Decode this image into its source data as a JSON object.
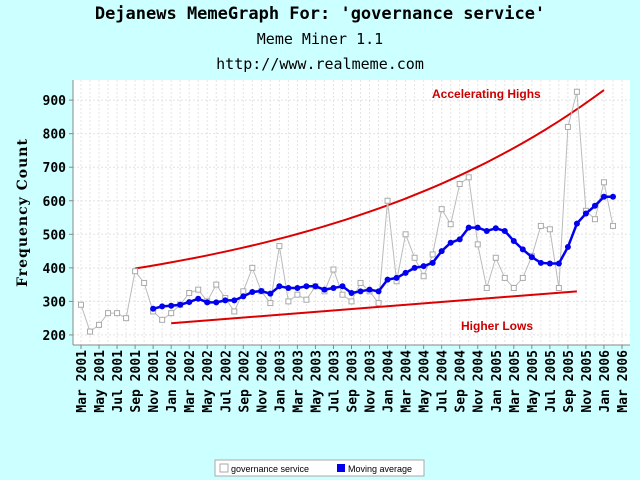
{
  "header": {
    "title": "Dejanews MemeGraph For: 'governance service'",
    "subtitle": "Meme Miner 1.1",
    "url": "http://www.realmeme.com"
  },
  "chart_data": {
    "type": "line",
    "ylabel": "Frequency Count",
    "ylim": [
      170,
      960
    ],
    "yticks": [
      200,
      300,
      400,
      500,
      600,
      700,
      800,
      900
    ],
    "grid": true,
    "background": "#ffffff",
    "page_background": "#ccffff",
    "legend_position": "bottom-center",
    "x_tick_labels": [
      "Mar 2001",
      "May 2001",
      "Jul 2001",
      "Sep 2001",
      "Nov 2001",
      "Jan 2002",
      "Mar 2002",
      "May 2002",
      "Jul 2002",
      "Sep 2002",
      "Nov 2002",
      "Jan 2003",
      "Mar 2003",
      "May 2003",
      "Jul 2003",
      "Sep 2003",
      "Nov 2003",
      "Jan 2004",
      "Mar 2004",
      "May 2004",
      "Jul 2004",
      "Sep 2004",
      "Nov 2004",
      "Jan 2005",
      "Mar 2005",
      "May 2005",
      "Jul 2005",
      "Sep 2005",
      "Nov 2005",
      "Jan 2006",
      "Mar 2006"
    ],
    "series": [
      {
        "name": "governance service",
        "color": "#bbbbbb",
        "marker": "open-square",
        "start": "Mar 2001",
        "values": [
          290,
          210,
          230,
          265,
          265,
          250,
          390,
          355,
          270,
          245,
          265,
          290,
          325,
          335,
          300,
          350,
          310,
          270,
          330,
          400,
          330,
          295,
          465,
          300,
          320,
          305,
          345,
          330,
          395,
          320,
          300,
          355,
          330,
          295,
          600,
          360,
          500,
          430,
          375,
          440,
          575,
          530,
          650,
          670,
          470,
          340,
          430,
          370,
          340,
          370,
          435,
          525,
          515,
          340,
          820,
          925,
          570,
          545,
          655,
          525
        ]
      },
      {
        "name": "Moving average",
        "color": "#0000ee",
        "marker": "filled-circle",
        "start": "Nov 2001",
        "values": [
          278,
          285,
          287,
          290,
          298,
          308,
          297,
          297,
          303,
          303,
          315,
          328,
          331,
          323,
          345,
          340,
          340,
          345,
          345,
          335,
          340,
          345,
          325,
          330,
          335,
          330,
          365,
          370,
          385,
          400,
          405,
          415,
          450,
          475,
          485,
          520,
          520,
          510,
          518,
          510,
          480,
          455,
          432,
          415,
          413,
          413,
          462,
          532,
          562,
          585,
          612,
          612
        ]
      }
    ],
    "trendlines": [
      {
        "name": "Accelerating Highs",
        "color": "#dd0000",
        "from": [
          "Sep 2001",
          398
        ],
        "to": [
          "Jan 2006",
          930
        ],
        "curve": "exponential"
      },
      {
        "name": "Higher Lows",
        "color": "#dd0000",
        "from": [
          "Jan 2002",
          235
        ],
        "to": [
          "Oct 2005",
          330
        ],
        "curve": "linear"
      }
    ],
    "annotations": [
      {
        "text": "Accelerating Highs",
        "color": "#cc0000"
      },
      {
        "text": "Higher Lows",
        "color": "#cc0000"
      }
    ]
  }
}
